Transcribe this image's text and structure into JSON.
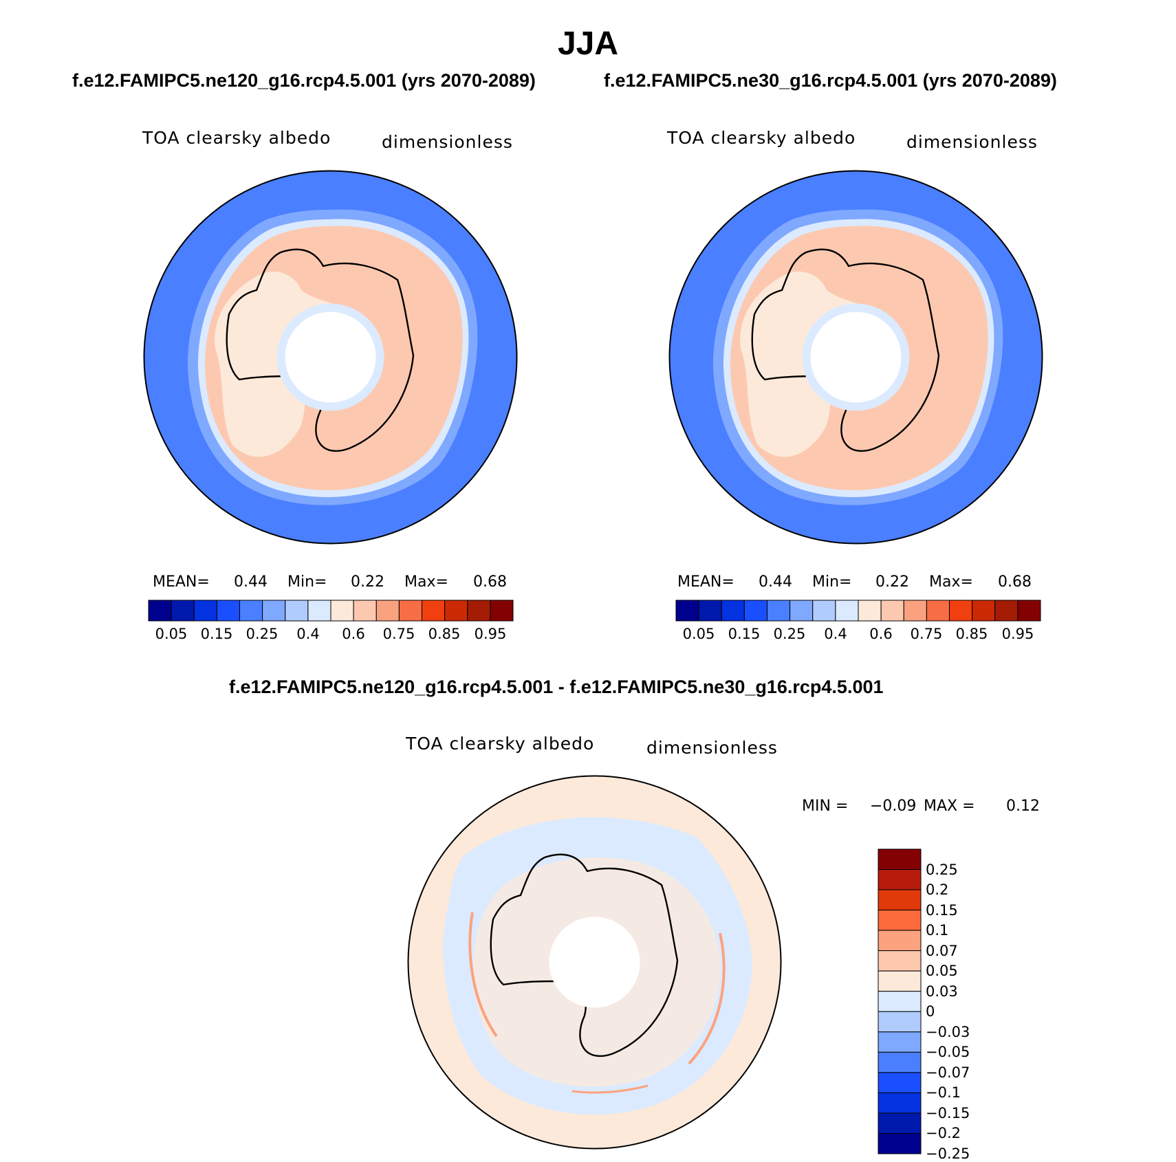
{
  "title": "JJA",
  "case_a": "f.e12.FAMIPC5.ne120_g16.rcp4.5.001 (yrs 2070-2089)",
  "case_b": "f.e12.FAMIPC5.ne30_g16.rcp4.5.001 (yrs 2070-2089)",
  "diff_title": "f.e12.FAMIPC5.ne120_g16.rcp4.5.001 - f.e12.FAMIPC5.ne30_g16.rcp4.5.001",
  "panels": [
    {
      "variable": "TOA clearsky albedo",
      "units": "dimensionless",
      "stats": {
        "mean_label": "MEAN=",
        "mean": "0.44",
        "min_label": "Min=",
        "min": "0.22",
        "max_label": "Max=",
        "max": "0.68"
      }
    },
    {
      "variable": "TOA clearsky albedo",
      "units": "dimensionless",
      "stats": {
        "mean_label": "MEAN=",
        "mean": "0.44",
        "min_label": "Min=",
        "min": "0.22",
        "max_label": "Max=",
        "max": "0.68"
      }
    },
    {
      "variable": "TOA clearsky albedo",
      "units": "dimensionless",
      "stats": {
        "min_label": "MIN =",
        "min": "−0.09",
        "max_label": "MAX =",
        "max": "0.12"
      }
    }
  ],
  "abs_colorbar": {
    "colors": [
      "#00008f",
      "#0019ad",
      "#0532e0",
      "#1a4fff",
      "#4a7fff",
      "#7fa8ff",
      "#b0ccff",
      "#dbeaff",
      "#fde9da",
      "#fcc9b0",
      "#faa27f",
      "#f76d45",
      "#f0400f",
      "#cc2a04",
      "#a51c05",
      "#830003"
    ],
    "ticks": [
      "0.05",
      "0.15",
      "0.25",
      "0.4",
      "0.6",
      "0.75",
      "0.85",
      "0.95"
    ]
  },
  "diff_colorbar": {
    "colors": [
      "#830003",
      "#b71c0a",
      "#e13a0a",
      "#fb6b3b",
      "#fca27f",
      "#fdc9ae",
      "#fde9da",
      "#dbeaff",
      "#b0ccff",
      "#7fa8ff",
      "#4a7fff",
      "#1a4fff",
      "#0532e0",
      "#0019ad",
      "#00008f"
    ],
    "ticks": [
      "0.25",
      "0.2",
      "0.15",
      "0.1",
      "0.07",
      "0.05",
      "0.03",
      "0",
      "−0.03",
      "−0.05",
      "−0.07",
      "−0.1",
      "−0.15",
      "−0.2",
      "−0.25"
    ]
  }
}
